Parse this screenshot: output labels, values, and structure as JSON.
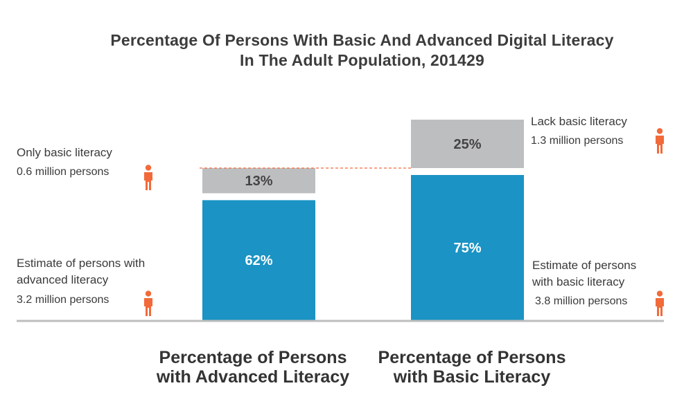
{
  "title": {
    "line1": "Percentage Of Persons With Basic And Advanced Digital Literacy",
    "line2": "In The Adult Population, 201429"
  },
  "colors": {
    "advanced": "#1b93c4",
    "basic_lack": "#bdbec0",
    "dashed_line": "#f26a3a",
    "person_icon": "#f26a3a",
    "axis": "#bdbdbd"
  },
  "chart_data": {
    "type": "bar",
    "stacked": true,
    "categories": [
      "Percentage of Persons with Advanced Literacy",
      "Percentage of Persons with Basic Literacy"
    ],
    "series": [
      {
        "values": [
          62,
          75
        ],
        "labels": [
          "62%",
          "75%"
        ]
      },
      {
        "values": [
          13,
          25
        ],
        "labels": [
          "13%",
          "25%"
        ]
      }
    ],
    "ylim": [
      0,
      100
    ],
    "grid": false,
    "legend": "none"
  },
  "category_labels": [
    {
      "line1": "Percentage of Persons",
      "line2": "with Advanced Literacy"
    },
    {
      "line1": "Percentage of Persons",
      "line2": "with Basic Literacy"
    }
  ],
  "annotations": {
    "only_basic": {
      "text": "Only basic literacy",
      "count": "0.6 million persons"
    },
    "advanced_estimate": {
      "line1": "Estimate of persons with",
      "line2": "advanced literacy",
      "count": "3.2 million persons"
    },
    "lack_basic": {
      "text": "Lack basic literacy",
      "count": "1.3 million persons"
    },
    "basic_estimate": {
      "line1": "Estimate of persons",
      "line2": "with basic literacy",
      "count": "3.8 million persons"
    }
  },
  "icons": [
    "person-icon"
  ]
}
